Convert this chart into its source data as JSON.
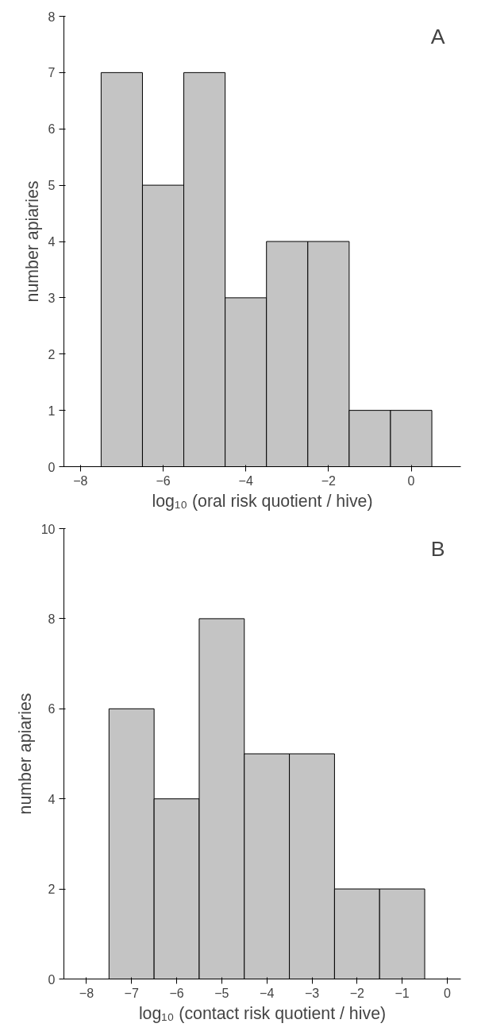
{
  "chart_data": [
    {
      "type": "histogram",
      "bins": [
        -7.5,
        -6.5,
        -5.5,
        -4.5,
        -3.5,
        -2.5,
        -1.5,
        -0.5,
        0.5
      ],
      "values": [
        7,
        5,
        7,
        3,
        4,
        4,
        1,
        1
      ],
      "color": "#c4c4c4",
      "xlabel": "log₁₀ (oral risk quotient / hive)",
      "ylabel": "number apiaries",
      "annotations": [
        "A"
      ],
      "xlim": [
        -8.4,
        1.2
      ],
      "xticks": [
        -8,
        -6,
        -4,
        -2,
        0
      ],
      "ylim": [
        0,
        8
      ],
      "yticks": [
        0,
        1,
        2,
        3,
        4,
        5,
        6,
        7,
        8
      ],
      "grid": false
    },
    {
      "type": "histogram",
      "bins": [
        -7.5,
        -6.5,
        -5.5,
        -4.5,
        -3.5,
        -2.5,
        -1.5,
        -0.5
      ],
      "values": [
        6,
        4,
        8,
        5,
        5,
        2,
        2
      ],
      "color": "#c4c4c4",
      "xlabel": "log₁₀ (contact risk quotient / hive)",
      "ylabel": "number apiaries",
      "annotations": [
        "B"
      ],
      "xlim": [
        -8.5,
        0.3
      ],
      "xticks": [
        -8,
        -7,
        -6,
        -5,
        -4,
        -3,
        -2,
        -1,
        0
      ],
      "ylim": [
        0,
        10
      ],
      "yticks": [
        0,
        2,
        4,
        6,
        8,
        10
      ],
      "grid": false
    }
  ]
}
